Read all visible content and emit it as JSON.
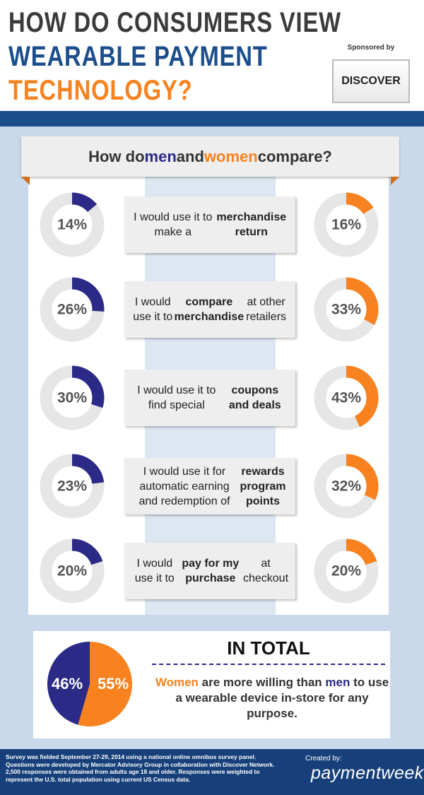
{
  "header": {
    "title_lines": [
      "HOW DO CONSUMERS VIEW",
      "WEARABLE PAYMENT",
      "TECHNOLOGY?"
    ],
    "sponsor_label": "Sponsored by",
    "sponsor": "DISCOVER"
  },
  "colors": {
    "men": "#2b2a86",
    "women": "#f7821f"
  },
  "comparison": {
    "question": [
      {
        "text": "How do "
      },
      {
        "text": "men",
        "emphasis": "men"
      },
      {
        "text": " and "
      },
      {
        "text": "women",
        "emphasis": "women"
      },
      {
        "text": " compare?"
      }
    ],
    "rows": [
      {
        "men": 14,
        "men_label": "14%",
        "women": 16,
        "women_label": "16%",
        "statement": [
          {
            "text": "I would use it to make a "
          },
          {
            "text": "merchandise return",
            "emphasis": "bold"
          }
        ]
      },
      {
        "men": 26,
        "men_label": "26%",
        "women": 33,
        "women_label": "33%",
        "statement": [
          {
            "text": "I would use it to "
          },
          {
            "text": "compare merchandise",
            "emphasis": "bold"
          },
          {
            "text": " at other retailers"
          }
        ]
      },
      {
        "men": 30,
        "men_label": "30%",
        "women": 43,
        "women_label": "43%",
        "statement": [
          {
            "text": "I would use it to find special "
          },
          {
            "text": "coupons and deals",
            "emphasis": "bold"
          }
        ]
      },
      {
        "men": 23,
        "men_label": "23%",
        "women": 32,
        "women_label": "32%",
        "statement": [
          {
            "text": "I would use it for automatic earning and redemption of "
          },
          {
            "text": "rewards program points",
            "emphasis": "bold"
          }
        ]
      },
      {
        "men": 20,
        "men_label": "20%",
        "women": 20,
        "women_label": "20%",
        "statement": [
          {
            "text": "I would use it to "
          },
          {
            "text": "pay for my purchase",
            "emphasis": "bold"
          },
          {
            "text": " at checkout"
          }
        ]
      }
    ]
  },
  "total": {
    "heading": "IN TOTAL",
    "men": 46,
    "men_label": "46%",
    "women": 55,
    "women_label": "55%",
    "statement": [
      {
        "text": "Women",
        "emphasis": "women"
      },
      {
        "text": " are more willing than "
      },
      {
        "text": "men",
        "emphasis": "men"
      },
      {
        "text": " to use a wearable device in-store for any purpose."
      }
    ]
  },
  "footer": {
    "note": "Survey was fielded September 27-29, 2014 using a national online omnibus survey panel. Questions were developed by Mercator Advisory Group in collaboration with Discover Network. 2,500 responses were obtained from adults age 18 and older. Responses were weighted to represent the U.S. total population using current US Census data.",
    "created_by": "Created by:",
    "brand": "paymentweek"
  }
}
